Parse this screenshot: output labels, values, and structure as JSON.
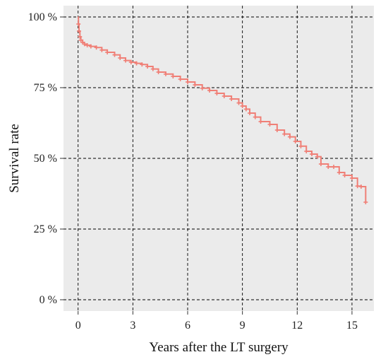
{
  "chart_data": {
    "type": "line",
    "title": "",
    "xlabel": "Years after the LT surgery",
    "ylabel": "Survival rate",
    "xlim": [
      -0.8,
      16.2
    ],
    "ylim": [
      -4,
      104
    ],
    "x_ticks": [
      0,
      3,
      6,
      9,
      12,
      15
    ],
    "x_tick_labels": [
      "0",
      "3",
      "6",
      "9",
      "12",
      "15"
    ],
    "y_ticks": [
      0,
      25,
      50,
      75,
      100
    ],
    "y_tick_labels": [
      "0 %",
      "25 %",
      "50 %",
      "75 %",
      "100 %"
    ],
    "grid": true,
    "step": true,
    "censor_marks": true,
    "colors": {
      "series": "#f07f76",
      "panel": "#ebebeb",
      "grid": "#000000"
    },
    "series": [
      {
        "x": [
          0,
          0.02,
          0.05,
          0.1,
          0.15,
          0.25,
          0.35,
          0.5,
          0.7,
          1.0,
          1.3,
          1.6,
          2.0,
          2.3,
          2.6,
          2.9,
          3.2,
          3.5,
          3.8,
          4.1,
          4.4,
          4.8,
          5.2,
          5.6,
          6.0,
          6.4,
          6.8,
          7.2,
          7.6,
          8.0,
          8.4,
          8.8,
          9.0,
          9.2,
          9.4,
          9.7,
          10.0,
          10.5,
          10.9,
          11.3,
          11.6,
          11.9,
          12.2,
          12.5,
          12.8,
          13.1,
          13.3,
          13.7,
          14.0,
          14.3,
          14.6,
          15.0,
          15.3,
          15.5,
          15.75
        ],
        "y": [
          100,
          97.5,
          95,
          93,
          91.8,
          91.0,
          90.4,
          90.0,
          89.6,
          89.2,
          88.3,
          87.5,
          86.6,
          85.5,
          84.6,
          84.0,
          83.6,
          83.2,
          82.5,
          81.6,
          80.5,
          79.8,
          79.0,
          78.0,
          77.0,
          76.0,
          74.8,
          74.0,
          73.0,
          72.0,
          71.0,
          69.6,
          68.5,
          67.4,
          66.0,
          64.6,
          63.0,
          62.0,
          60.0,
          58.6,
          57.6,
          56.0,
          54.3,
          52.5,
          51.5,
          50.6,
          48.0,
          47.0,
          47.0,
          45.0,
          44.0,
          43.0,
          40.2,
          40.0,
          34.5
        ]
      }
    ]
  }
}
